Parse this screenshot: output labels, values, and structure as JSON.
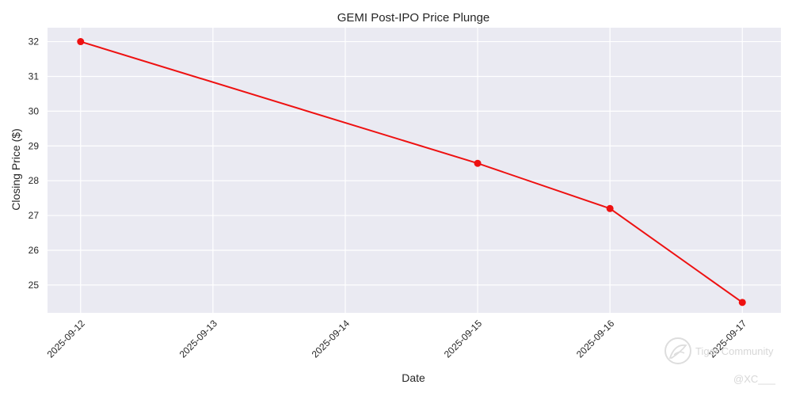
{
  "chart_data": {
    "type": "line",
    "title": "GEMI Post-IPO Price Plunge",
    "xlabel": "Date",
    "ylabel": "Closing Price ($)",
    "x_ticks": [
      "2025-09-12",
      "2025-09-13",
      "2025-09-14",
      "2025-09-15",
      "2025-09-16",
      "2025-09-17"
    ],
    "y_ticks": [
      25,
      26,
      27,
      28,
      29,
      30,
      31,
      32
    ],
    "xlim": [
      "2025-09-11T18:00",
      "2025-09-17T07:00"
    ],
    "ylim": [
      24.2,
      32.4
    ],
    "grid": true,
    "series": [
      {
        "color": "#ee1111",
        "marker": "circle",
        "points": [
          {
            "x": "2025-09-12",
            "y": 32.0
          },
          {
            "x": "2025-09-15",
            "y": 28.5
          },
          {
            "x": "2025-09-16",
            "y": 27.2
          },
          {
            "x": "2025-09-17",
            "y": 24.5
          }
        ]
      }
    ],
    "background_color": "#eaeaf2",
    "grid_color": "#ffffff"
  },
  "watermark": {
    "brand": "Tiger Community",
    "handle": "@XC___",
    "icon": "tiger-logo-icon"
  }
}
